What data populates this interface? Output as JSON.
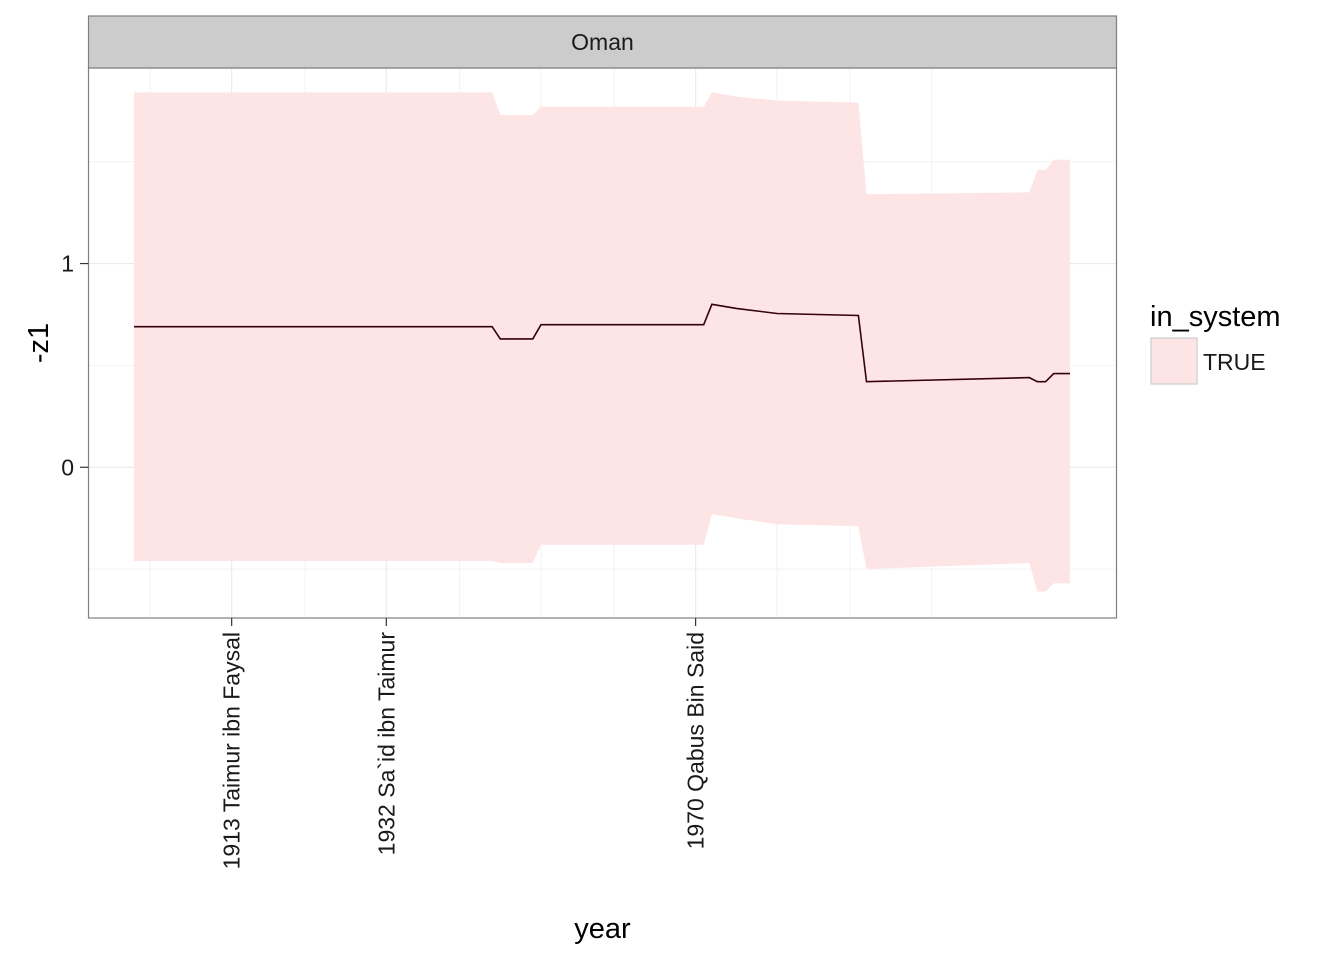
{
  "chart_data": {
    "type": "area",
    "facet_label": "Oman",
    "xlabel": "year",
    "ylabel": "-z1",
    "x_tick_labels": [
      {
        "year": 1913,
        "label": "1913 Taimur ibn Faysal"
      },
      {
        "year": 1932,
        "label": "1932 Sa`id ibn Taimur"
      },
      {
        "year": 1970,
        "label": "1970 Qabus Bin Said"
      }
    ],
    "y_tick_labels": [
      {
        "value": 0,
        "label": "0"
      },
      {
        "value": 1,
        "label": "1"
      }
    ],
    "xlim": [
      1901,
      2027
    ],
    "ylim": [
      -0.74,
      1.96
    ],
    "x_minor_gridlines": [
      1903,
      1922,
      1941,
      1951,
      1960,
      1980,
      1989,
      1999
    ],
    "y_minor_gridlines": [
      -0.5,
      0.5,
      1.5
    ],
    "grid": true,
    "legend": {
      "title": "in_system",
      "position": "right",
      "entries": [
        {
          "label": "TRUE",
          "color": "#fee5e5"
        }
      ]
    },
    "colors": {
      "ribbon": "#fee5e5",
      "line": "#330010",
      "strip": "#cccccc",
      "panel_border": "#7f7f7f",
      "grid": "#ebebeb"
    },
    "series": [
      {
        "points": [
          {
            "year": 1901,
            "y": 0.69,
            "lower": -0.46,
            "upper": 1.84
          },
          {
            "year": 1945,
            "y": 0.69,
            "lower": -0.46,
            "upper": 1.84
          },
          {
            "year": 1946,
            "y": 0.63,
            "lower": -0.47,
            "upper": 1.73
          },
          {
            "year": 1950,
            "y": 0.63,
            "lower": -0.47,
            "upper": 1.73
          },
          {
            "year": 1951,
            "y": 0.7,
            "lower": -0.38,
            "upper": 1.77
          },
          {
            "year": 1971,
            "y": 0.7,
            "lower": -0.38,
            "upper": 1.77
          },
          {
            "year": 1972,
            "y": 0.8,
            "lower": -0.23,
            "upper": 1.84
          },
          {
            "year": 1975,
            "y": 0.78,
            "lower": -0.25,
            "upper": 1.82
          },
          {
            "year": 1980,
            "y": 0.755,
            "lower": -0.28,
            "upper": 1.8
          },
          {
            "year": 1990,
            "y": 0.745,
            "lower": -0.29,
            "upper": 1.79
          },
          {
            "year": 1991,
            "y": 0.42,
            "lower": -0.5,
            "upper": 1.34
          },
          {
            "year": 2011,
            "y": 0.44,
            "lower": -0.47,
            "upper": 1.35
          },
          {
            "year": 2012,
            "y": 0.42,
            "lower": -0.61,
            "upper": 1.46
          },
          {
            "year": 2013,
            "y": 0.42,
            "lower": -0.61,
            "upper": 1.46
          },
          {
            "year": 2014,
            "y": 0.46,
            "lower": -0.57,
            "upper": 1.51
          },
          {
            "year": 2016,
            "y": 0.46,
            "lower": -0.57,
            "upper": 1.51
          }
        ]
      }
    ]
  }
}
